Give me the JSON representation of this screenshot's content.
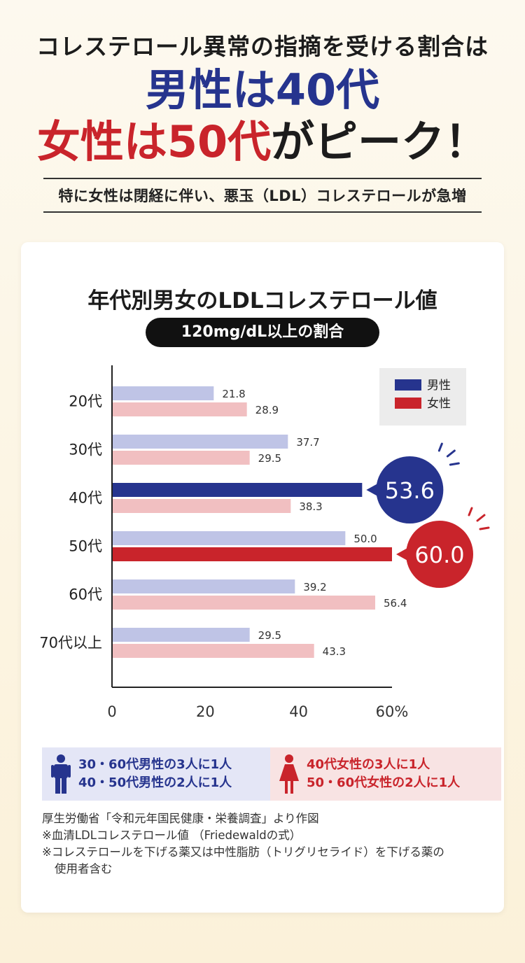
{
  "header": {
    "lead": "コレステロール異常の指摘を受ける割合は",
    "line1_a": "男性は40代",
    "line2_a": "女性は50代",
    "line2_b": "がピーク！",
    "subtitle": "特に女性は閉経に伴い、悪玉（LDL）コレステロールが急増"
  },
  "chart_data": {
    "type": "bar",
    "orientation": "horizontal",
    "title": "年代別男女のLDLコレステロール値",
    "subtitle": "120mg/dL以上の割合",
    "categories": [
      "20代",
      "30代",
      "40代",
      "50代",
      "60代",
      "70代以上"
    ],
    "series": [
      {
        "name": "男性",
        "values": [
          21.8,
          37.7,
          53.6,
          50.0,
          39.2,
          29.5
        ],
        "color": "#bfc4e6",
        "highlight_color": "#26348e"
      },
      {
        "name": "女性",
        "values": [
          28.9,
          29.5,
          38.3,
          60.0,
          56.4,
          43.3
        ],
        "color": "#f1bfc1",
        "highlight_color": "#c9242b"
      }
    ],
    "value_labels": [
      [
        "21.8",
        "37.7",
        "53.6",
        "50.0",
        "39.2",
        "29.5"
      ],
      [
        "28.9",
        "29.5",
        "38.3",
        "60.0",
        "56.4",
        "43.3"
      ]
    ],
    "highlights": [
      {
        "series": 0,
        "category": 2,
        "label": "53.6"
      },
      {
        "series": 1,
        "category": 3,
        "label": "60.0"
      }
    ],
    "xlim": [
      0,
      60
    ],
    "xticks": [
      "0",
      "20",
      "40",
      "60%"
    ],
    "legend_placement": "top-right",
    "grid": false
  },
  "callouts": {
    "male": [
      "30・60代男性の3人に1人",
      "40・50代男性の2人に1人"
    ],
    "female": [
      "40代女性の3人に1人",
      "50・60代女性の2人に1人"
    ]
  },
  "notes": [
    "厚生労働省「令和元年国民健康・栄養調査」より作図",
    "※血清LDLコレステロール値 （Friedewaldの式）",
    "※コレステロールを下げる薬又は中性脂肪（トリグリセライド）を下げる薬の",
    "使用者含む"
  ],
  "colors": {
    "male_dark": "#26348e",
    "female_dark": "#c9242b",
    "male_light": "#bfc4e6",
    "female_light": "#f1bfc1"
  }
}
